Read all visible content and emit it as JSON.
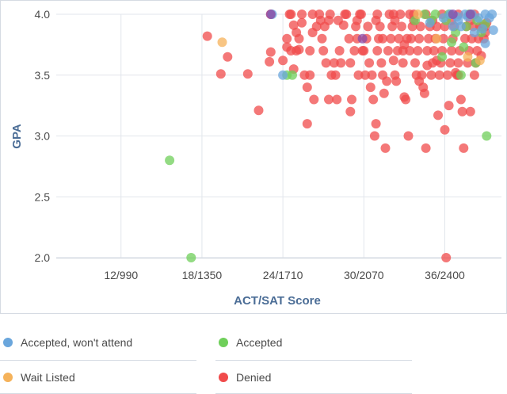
{
  "chart_data": {
    "type": "scatter",
    "xlabel": "ACT/SAT Score",
    "ylabel": "GPA",
    "xlim": [
      7.2,
      40.2
    ],
    "ylim": [
      2.0,
      4.0
    ],
    "x_ticks": [
      {
        "value": 12,
        "label": "12/990"
      },
      {
        "value": 18,
        "label": "18/1350"
      },
      {
        "value": 24,
        "label": "24/1710"
      },
      {
        "value": 30,
        "label": "30/2070"
      },
      {
        "value": 36,
        "label": "36/2400"
      }
    ],
    "y_ticks": [
      {
        "value": 2.0,
        "label": "2.0"
      },
      {
        "value": 2.5,
        "label": "2.5"
      },
      {
        "value": 3.0,
        "label": "3.0"
      },
      {
        "value": 3.5,
        "label": "3.5"
      },
      {
        "value": 4.0,
        "label": "4.0"
      }
    ],
    "grid": "vertical",
    "legend_position": "bottom",
    "series": [
      {
        "name": "Denied",
        "color": "#f04b4b",
        "points": [
          [
            18.4,
            3.82
          ],
          [
            19.9,
            3.65
          ],
          [
            19.4,
            3.51
          ],
          [
            21.4,
            3.51
          ],
          [
            22.2,
            3.21
          ],
          [
            23.0,
            3.61
          ],
          [
            23.1,
            3.69
          ],
          [
            23.1,
            4.0
          ],
          [
            24.3,
            3.73
          ],
          [
            24.3,
            3.8
          ],
          [
            24.5,
            4.0
          ],
          [
            24.6,
            4.0
          ],
          [
            24.6,
            3.7
          ],
          [
            24.8,
            3.91
          ],
          [
            25.0,
            3.7
          ],
          [
            25.2,
            3.71
          ],
          [
            25.2,
            3.8
          ],
          [
            25.4,
            3.93
          ],
          [
            25.6,
            3.5
          ],
          [
            25.8,
            3.4
          ],
          [
            25.8,
            3.1
          ],
          [
            26.0,
            3.7
          ],
          [
            26.2,
            4.0
          ],
          [
            26.5,
            3.9
          ],
          [
            26.7,
            4.0
          ],
          [
            26.9,
            3.8
          ],
          [
            27.0,
            3.7
          ],
          [
            27.1,
            3.9
          ],
          [
            27.4,
            3.3
          ],
          [
            27.5,
            4.0
          ],
          [
            27.6,
            3.5
          ],
          [
            27.8,
            3.6
          ],
          [
            28.0,
            3.3
          ],
          [
            28.2,
            3.7
          ],
          [
            28.5,
            3.91
          ],
          [
            28.7,
            4.0
          ],
          [
            28.9,
            3.8
          ],
          [
            29.0,
            3.6
          ],
          [
            29.3,
            3.7
          ],
          [
            29.4,
            3.9
          ],
          [
            29.5,
            3.8
          ],
          [
            29.6,
            3.5
          ],
          [
            29.7,
            4.0
          ],
          [
            29.9,
            3.7
          ],
          [
            30.0,
            3.7
          ],
          [
            30.2,
            3.8
          ],
          [
            30.3,
            3.9
          ],
          [
            30.4,
            3.6
          ],
          [
            30.6,
            3.5
          ],
          [
            30.7,
            3.3
          ],
          [
            30.8,
            3.0
          ],
          [
            30.9,
            3.1
          ],
          [
            31.0,
            3.7
          ],
          [
            31.1,
            3.8
          ],
          [
            31.2,
            3.9
          ],
          [
            31.3,
            3.6
          ],
          [
            31.4,
            3.5
          ],
          [
            31.5,
            3.35
          ],
          [
            31.6,
            2.9
          ],
          [
            31.8,
            3.7
          ],
          [
            31.9,
            4.0
          ],
          [
            32.0,
            3.8
          ],
          [
            32.1,
            3.9
          ],
          [
            32.2,
            3.62
          ],
          [
            32.3,
            3.5
          ],
          [
            32.4,
            3.45
          ],
          [
            32.5,
            3.7
          ],
          [
            32.6,
            3.8
          ],
          [
            32.7,
            4.0
          ],
          [
            32.8,
            3.9
          ],
          [
            32.9,
            3.6
          ],
          [
            33.0,
            3.32
          ],
          [
            33.1,
            3.3
          ],
          [
            33.3,
            3.0
          ],
          [
            33.4,
            3.7
          ],
          [
            33.5,
            3.8
          ],
          [
            33.6,
            3.9
          ],
          [
            33.7,
            4.0
          ],
          [
            33.8,
            3.6
          ],
          [
            33.9,
            3.5
          ],
          [
            34.0,
            3.7
          ],
          [
            34.1,
            3.8
          ],
          [
            34.2,
            3.9
          ],
          [
            34.3,
            3.5
          ],
          [
            34.4,
            3.4
          ],
          [
            34.5,
            3.35
          ],
          [
            34.6,
            2.9
          ],
          [
            34.7,
            3.7
          ],
          [
            34.8,
            3.8
          ],
          [
            34.9,
            3.9
          ],
          [
            35.0,
            3.5
          ],
          [
            35.1,
            3.6
          ],
          [
            35.2,
            3.7
          ],
          [
            35.3,
            3.8
          ],
          [
            35.4,
            3.9
          ],
          [
            35.5,
            3.17
          ],
          [
            35.6,
            3.5
          ],
          [
            35.7,
            3.6
          ],
          [
            35.8,
            3.7
          ],
          [
            35.9,
            3.8
          ],
          [
            36.0,
            3.9
          ],
          [
            36.1,
            2.0
          ],
          [
            36.2,
            3.5
          ],
          [
            36.3,
            3.25
          ],
          [
            36.4,
            3.6
          ],
          [
            36.5,
            3.7
          ],
          [
            36.6,
            3.8
          ],
          [
            36.7,
            3.9
          ],
          [
            36.8,
            3.52
          ],
          [
            36.9,
            3.5
          ],
          [
            37.0,
            3.6
          ],
          [
            37.1,
            3.7
          ],
          [
            37.2,
            3.3
          ],
          [
            37.3,
            3.2
          ],
          [
            37.4,
            2.9
          ],
          [
            37.5,
            3.8
          ],
          [
            37.6,
            3.9
          ],
          [
            37.7,
            3.6
          ],
          [
            37.8,
            3.7
          ],
          [
            37.9,
            3.2
          ],
          [
            38.0,
            3.8
          ],
          [
            38.1,
            3.9
          ],
          [
            38.2,
            3.5
          ],
          [
            38.3,
            3.6
          ],
          [
            38.4,
            3.7
          ],
          [
            38.5,
            3.8
          ],
          [
            38.6,
            3.9
          ],
          [
            38.7,
            3.66
          ],
          [
            38.8,
            3.9
          ],
          [
            38.9,
            3.8
          ],
          [
            39.0,
            3.9
          ],
          [
            39.1,
            3.93
          ],
          [
            26.3,
            3.3
          ],
          [
            27.2,
            3.6
          ],
          [
            28.3,
            3.6
          ],
          [
            29.1,
            3.3
          ],
          [
            30.5,
            3.4
          ],
          [
            31.7,
            3.45
          ],
          [
            32.9,
            3.7
          ],
          [
            33.2,
            3.8
          ],
          [
            34.1,
            3.45
          ],
          [
            35.4,
            3.62
          ],
          [
            36.0,
            3.05
          ],
          [
            37.0,
            3.5
          ],
          [
            24.8,
            3.55
          ],
          [
            26.0,
            3.5
          ],
          [
            27.9,
            3.5
          ],
          [
            29.0,
            3.2
          ],
          [
            30.1,
            3.5
          ],
          [
            31.4,
            3.8
          ],
          [
            33.0,
            3.75
          ],
          [
            34.7,
            3.58
          ],
          [
            25.4,
            4.0
          ],
          [
            26.8,
            3.95
          ],
          [
            28.1,
            3.95
          ],
          [
            29.5,
            3.95
          ],
          [
            30.9,
            3.95
          ],
          [
            32.3,
            3.95
          ],
          [
            33.7,
            3.95
          ],
          [
            35.1,
            3.95
          ],
          [
            36.5,
            3.95
          ],
          [
            37.9,
            3.95
          ],
          [
            39.0,
            3.85
          ],
          [
            38.2,
            4.0
          ],
          [
            37.0,
            4.0
          ],
          [
            35.8,
            4.0
          ],
          [
            34.6,
            4.0
          ],
          [
            33.4,
            4.0
          ],
          [
            32.2,
            4.0
          ],
          [
            31.0,
            4.0
          ],
          [
            29.8,
            4.0
          ],
          [
            28.6,
            4.0
          ],
          [
            27.4,
            3.95
          ],
          [
            26.2,
            3.85
          ],
          [
            25.0,
            3.85
          ],
          [
            24.0,
            3.62
          ]
        ]
      },
      {
        "name": "Accepted",
        "color": "#6fcf5a",
        "points": [
          [
            15.6,
            2.8
          ],
          [
            17.2,
            2.0
          ],
          [
            24.3,
            3.5
          ],
          [
            24.7,
            3.5
          ],
          [
            35.8,
            3.65
          ],
          [
            36.5,
            3.77
          ],
          [
            37.2,
            3.5
          ],
          [
            37.4,
            3.73
          ],
          [
            38.3,
            3.6
          ],
          [
            39.1,
            3.0
          ],
          [
            34.5,
            4.0
          ],
          [
            35.3,
            4.0
          ],
          [
            36.1,
            3.95
          ],
          [
            36.8,
            3.85
          ],
          [
            37.6,
            3.9
          ],
          [
            38.4,
            3.95
          ],
          [
            39.0,
            3.92
          ],
          [
            35.0,
            3.95
          ],
          [
            36.3,
            4.0
          ],
          [
            37.8,
            4.0
          ],
          [
            38.7,
            3.85
          ],
          [
            33.8,
            3.95
          ]
        ]
      },
      {
        "name": "Accepted, won't attend",
        "color": "#6aa6dc",
        "points": [
          [
            23.2,
            4.0
          ],
          [
            24.0,
            3.5
          ],
          [
            35.9,
            3.97
          ],
          [
            36.4,
            4.0
          ],
          [
            37.0,
            3.95
          ],
          [
            37.5,
            4.0
          ],
          [
            38.0,
            4.0
          ],
          [
            38.5,
            3.97
          ],
          [
            39.0,
            4.0
          ],
          [
            39.5,
            4.0
          ],
          [
            39.6,
            3.87
          ],
          [
            39.0,
            3.76
          ],
          [
            38.2,
            3.85
          ],
          [
            37.2,
            3.9
          ],
          [
            36.6,
            3.9
          ],
          [
            34.9,
            3.93
          ],
          [
            39.3,
            3.97
          ],
          [
            38.8,
            3.88
          ],
          [
            37.7,
            3.98
          ],
          [
            36.9,
            3.98
          ]
        ]
      },
      {
        "name": "Wait Listed",
        "color": "#f5b25a",
        "points": [
          [
            19.5,
            3.77
          ],
          [
            35.4,
            3.8
          ],
          [
            37.7,
            3.65
          ],
          [
            38.6,
            3.62
          ],
          [
            34.0,
            4.0
          ]
        ]
      },
      {
        "name": "Purple",
        "color": "#8a4aa8",
        "points": [
          [
            23.1,
            4.0
          ],
          [
            29.9,
            3.8
          ],
          [
            36.6,
            4.0
          ],
          [
            37.9,
            4.0
          ]
        ]
      }
    ]
  },
  "legend": {
    "items": [
      {
        "label": "Accepted, won't attend",
        "color": "#6aa6dc"
      },
      {
        "label": "Accepted",
        "color": "#6fcf5a"
      },
      {
        "label": "Wait Listed",
        "color": "#f5b25a"
      },
      {
        "label": "Denied",
        "color": "#f04b4b"
      }
    ]
  }
}
